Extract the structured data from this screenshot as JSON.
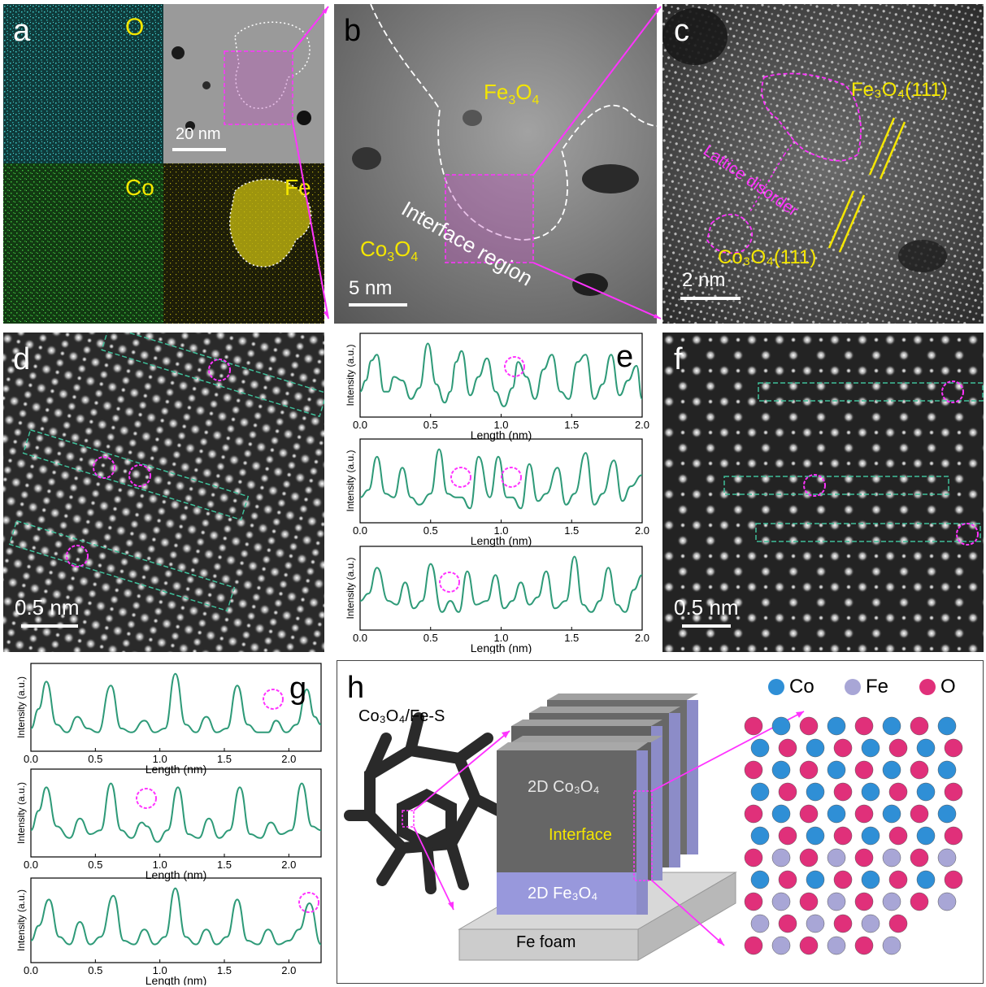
{
  "figure": {
    "panel_a": {
      "letter": "a",
      "labels": {
        "o": "O",
        "co": "Co",
        "fe": "Fe"
      },
      "scale": "20 nm"
    },
    "panel_b": {
      "letter": "b",
      "fe3o4": "Fe",
      "fe3o4_sub": "3",
      "fe3o4_o": "O",
      "fe3o4_sub2": "4",
      "co3o4": "Co",
      "co3o4_sub": "3",
      "co3o4_o": "O",
      "co3o4_sub2": "4",
      "interface": "Interface region",
      "scale": "5 nm"
    },
    "panel_c": {
      "letter": "c",
      "fe_plane": "Fe₃O₄(111)",
      "co_plane": "Co₃O₄(111)",
      "disorder": "Lattice disorder",
      "scale": "2 nm"
    },
    "panel_d": {
      "letter": "d",
      "scale": "0.5 nm"
    },
    "panel_e": {
      "letter": "e"
    },
    "panel_f": {
      "letter": "f",
      "scale": "0.5 nm"
    },
    "panel_g": {
      "letter": "g"
    },
    "panel_h": {
      "letter": "h",
      "legend": [
        "Co",
        "Fe",
        "O"
      ],
      "legend_colors": [
        "#2f8fd6",
        "#a8a6d6",
        "#e0307a"
      ],
      "precursor": "Co₃O₄/Fe-S",
      "co_layer": "2D Co₃O₄",
      "interface": "Interface",
      "fe_layer": "2D Fe₃O₄",
      "foam": "Fe foam"
    }
  },
  "chart_data": [
    {
      "type": "line",
      "panel": "e",
      "ylabel": "Intensity (a.u.)",
      "xlabel": "Length (nm)",
      "xlim": [
        0,
        2.0
      ],
      "xticks": [
        "0.0",
        "0.5",
        "1.0",
        "1.5",
        "2.0"
      ],
      "x": [
        0.0,
        0.04,
        0.08,
        0.12,
        0.17,
        0.2,
        0.24,
        0.3,
        0.36,
        0.42,
        0.48,
        0.54,
        0.6,
        0.64,
        0.68,
        0.72,
        0.78,
        0.84,
        0.9,
        0.96,
        1.02,
        1.08,
        1.12,
        1.18,
        1.24,
        1.3,
        1.36,
        1.42,
        1.48,
        1.54,
        1.6,
        1.66,
        1.72,
        1.78,
        1.84,
        1.9,
        1.96,
        2.0
      ],
      "y": [
        0.3,
        0.45,
        0.72,
        0.8,
        0.3,
        0.3,
        0.5,
        0.45,
        0.2,
        0.35,
        0.95,
        0.4,
        0.15,
        0.3,
        0.7,
        0.85,
        0.25,
        0.5,
        0.75,
        0.3,
        0.1,
        0.35,
        0.7,
        0.5,
        0.2,
        0.6,
        0.8,
        0.3,
        0.2,
        0.7,
        0.8,
        0.2,
        0.4,
        0.8,
        0.25,
        0.45,
        0.65,
        0.2
      ]
    },
    {
      "type": "line",
      "panel": "e",
      "ylabel": "Intensity (a.u.)",
      "xlabel": "Length (nm)",
      "xlim": [
        0,
        2.0
      ],
      "xticks": [
        "0.0",
        "0.5",
        "1.0",
        "1.5",
        "2.0"
      ],
      "x": [
        0.0,
        0.06,
        0.12,
        0.18,
        0.24,
        0.3,
        0.36,
        0.42,
        0.5,
        0.56,
        0.62,
        0.68,
        0.72,
        0.78,
        0.84,
        0.92,
        0.98,
        1.04,
        1.08,
        1.14,
        1.2,
        1.26,
        1.32,
        1.4,
        1.46,
        1.52,
        1.6,
        1.66,
        1.72,
        1.8,
        1.86,
        1.92,
        2.0
      ],
      "y": [
        0.3,
        0.4,
        0.85,
        0.35,
        0.3,
        0.7,
        0.3,
        0.2,
        0.35,
        0.95,
        0.35,
        0.3,
        0.3,
        0.15,
        0.85,
        0.3,
        0.85,
        0.3,
        0.3,
        0.15,
        0.75,
        0.25,
        0.35,
        0.7,
        0.2,
        0.35,
        0.9,
        0.2,
        0.35,
        0.8,
        0.25,
        0.45,
        0.6
      ]
    },
    {
      "type": "line",
      "panel": "e",
      "ylabel": "Intensity (a.u.)",
      "xlabel": "Length (nm)",
      "xlim": [
        0,
        2.0
      ],
      "xticks": [
        "0.0",
        "0.5",
        "1.0",
        "1.5",
        "2.0"
      ],
      "x": [
        0.0,
        0.06,
        0.12,
        0.2,
        0.26,
        0.32,
        0.38,
        0.44,
        0.5,
        0.58,
        0.64,
        0.7,
        0.76,
        0.82,
        0.9,
        0.96,
        1.02,
        1.08,
        1.14,
        1.2,
        1.26,
        1.32,
        1.38,
        1.46,
        1.52,
        1.58,
        1.64,
        1.7,
        1.76,
        1.82,
        1.88,
        1.94,
        2.0
      ],
      "y": [
        0.35,
        0.45,
        0.8,
        0.35,
        0.3,
        0.6,
        0.25,
        0.35,
        0.85,
        0.2,
        0.35,
        0.2,
        0.75,
        0.3,
        0.35,
        0.7,
        0.25,
        0.35,
        0.6,
        0.3,
        0.4,
        0.75,
        0.25,
        0.35,
        0.95,
        0.3,
        0.2,
        0.35,
        0.8,
        0.3,
        0.2,
        0.5,
        0.7
      ]
    },
    {
      "type": "line",
      "panel": "g",
      "ylabel": "Intensity (a.u.)",
      "xlabel": "Length (nm)",
      "xlim": [
        0,
        2.25
      ],
      "xticks": [
        "0.0",
        "0.5",
        "1.0",
        "1.5",
        "2.0"
      ],
      "x": [
        0.0,
        0.06,
        0.12,
        0.2,
        0.28,
        0.36,
        0.44,
        0.52,
        0.62,
        0.7,
        0.78,
        0.88,
        0.96,
        1.04,
        1.12,
        1.2,
        1.28,
        1.36,
        1.44,
        1.52,
        1.6,
        1.68,
        1.76,
        1.84,
        1.9,
        1.98,
        2.06,
        2.14,
        2.2,
        2.25
      ],
      "y": [
        0.25,
        0.5,
        0.85,
        0.3,
        0.2,
        0.4,
        0.25,
        0.2,
        0.8,
        0.25,
        0.2,
        0.35,
        0.2,
        0.25,
        0.95,
        0.3,
        0.2,
        0.4,
        0.2,
        0.25,
        0.8,
        0.3,
        0.2,
        0.2,
        0.35,
        0.2,
        0.3,
        0.75,
        0.4,
        0.3
      ]
    },
    {
      "type": "line",
      "panel": "g",
      "ylabel": "Intensity (a.u.)",
      "xlabel": "Length (nm)",
      "xlim": [
        0,
        2.25
      ],
      "xticks": [
        "0.0",
        "0.5",
        "1.0",
        "1.5",
        "2.0"
      ],
      "x": [
        0.0,
        0.06,
        0.12,
        0.2,
        0.3,
        0.38,
        0.46,
        0.54,
        0.62,
        0.7,
        0.78,
        0.86,
        0.9,
        0.98,
        1.06,
        1.14,
        1.22,
        1.3,
        1.38,
        1.46,
        1.54,
        1.62,
        1.7,
        1.78,
        1.86,
        1.94,
        2.02,
        2.1,
        2.18,
        2.25
      ],
      "y": [
        0.3,
        0.55,
        0.85,
        0.35,
        0.2,
        0.45,
        0.25,
        0.3,
        0.9,
        0.3,
        0.2,
        0.4,
        0.35,
        0.15,
        0.3,
        0.85,
        0.25,
        0.2,
        0.45,
        0.2,
        0.3,
        0.85,
        0.25,
        0.2,
        0.4,
        0.25,
        0.3,
        0.9,
        0.35,
        0.3
      ]
    },
    {
      "type": "line",
      "panel": "g",
      "ylabel": "Intensity (a.u.)",
      "xlabel": "Length (nm)",
      "xlim": [
        0,
        2.25
      ],
      "xticks": [
        "0.0",
        "0.5",
        "1.0",
        "1.5",
        "2.0"
      ],
      "x": [
        0.0,
        0.06,
        0.14,
        0.22,
        0.3,
        0.38,
        0.46,
        0.54,
        0.64,
        0.72,
        0.8,
        0.88,
        0.96,
        1.04,
        1.12,
        1.2,
        1.28,
        1.36,
        1.44,
        1.52,
        1.6,
        1.68,
        1.76,
        1.84,
        1.92,
        2.0,
        2.08,
        2.16,
        2.25
      ],
      "y": [
        0.25,
        0.45,
        0.8,
        0.3,
        0.2,
        0.5,
        0.2,
        0.3,
        0.85,
        0.25,
        0.2,
        0.4,
        0.2,
        0.3,
        0.95,
        0.3,
        0.2,
        0.4,
        0.2,
        0.3,
        0.8,
        0.25,
        0.2,
        0.4,
        0.2,
        0.25,
        0.4,
        0.75,
        0.2
      ]
    }
  ]
}
